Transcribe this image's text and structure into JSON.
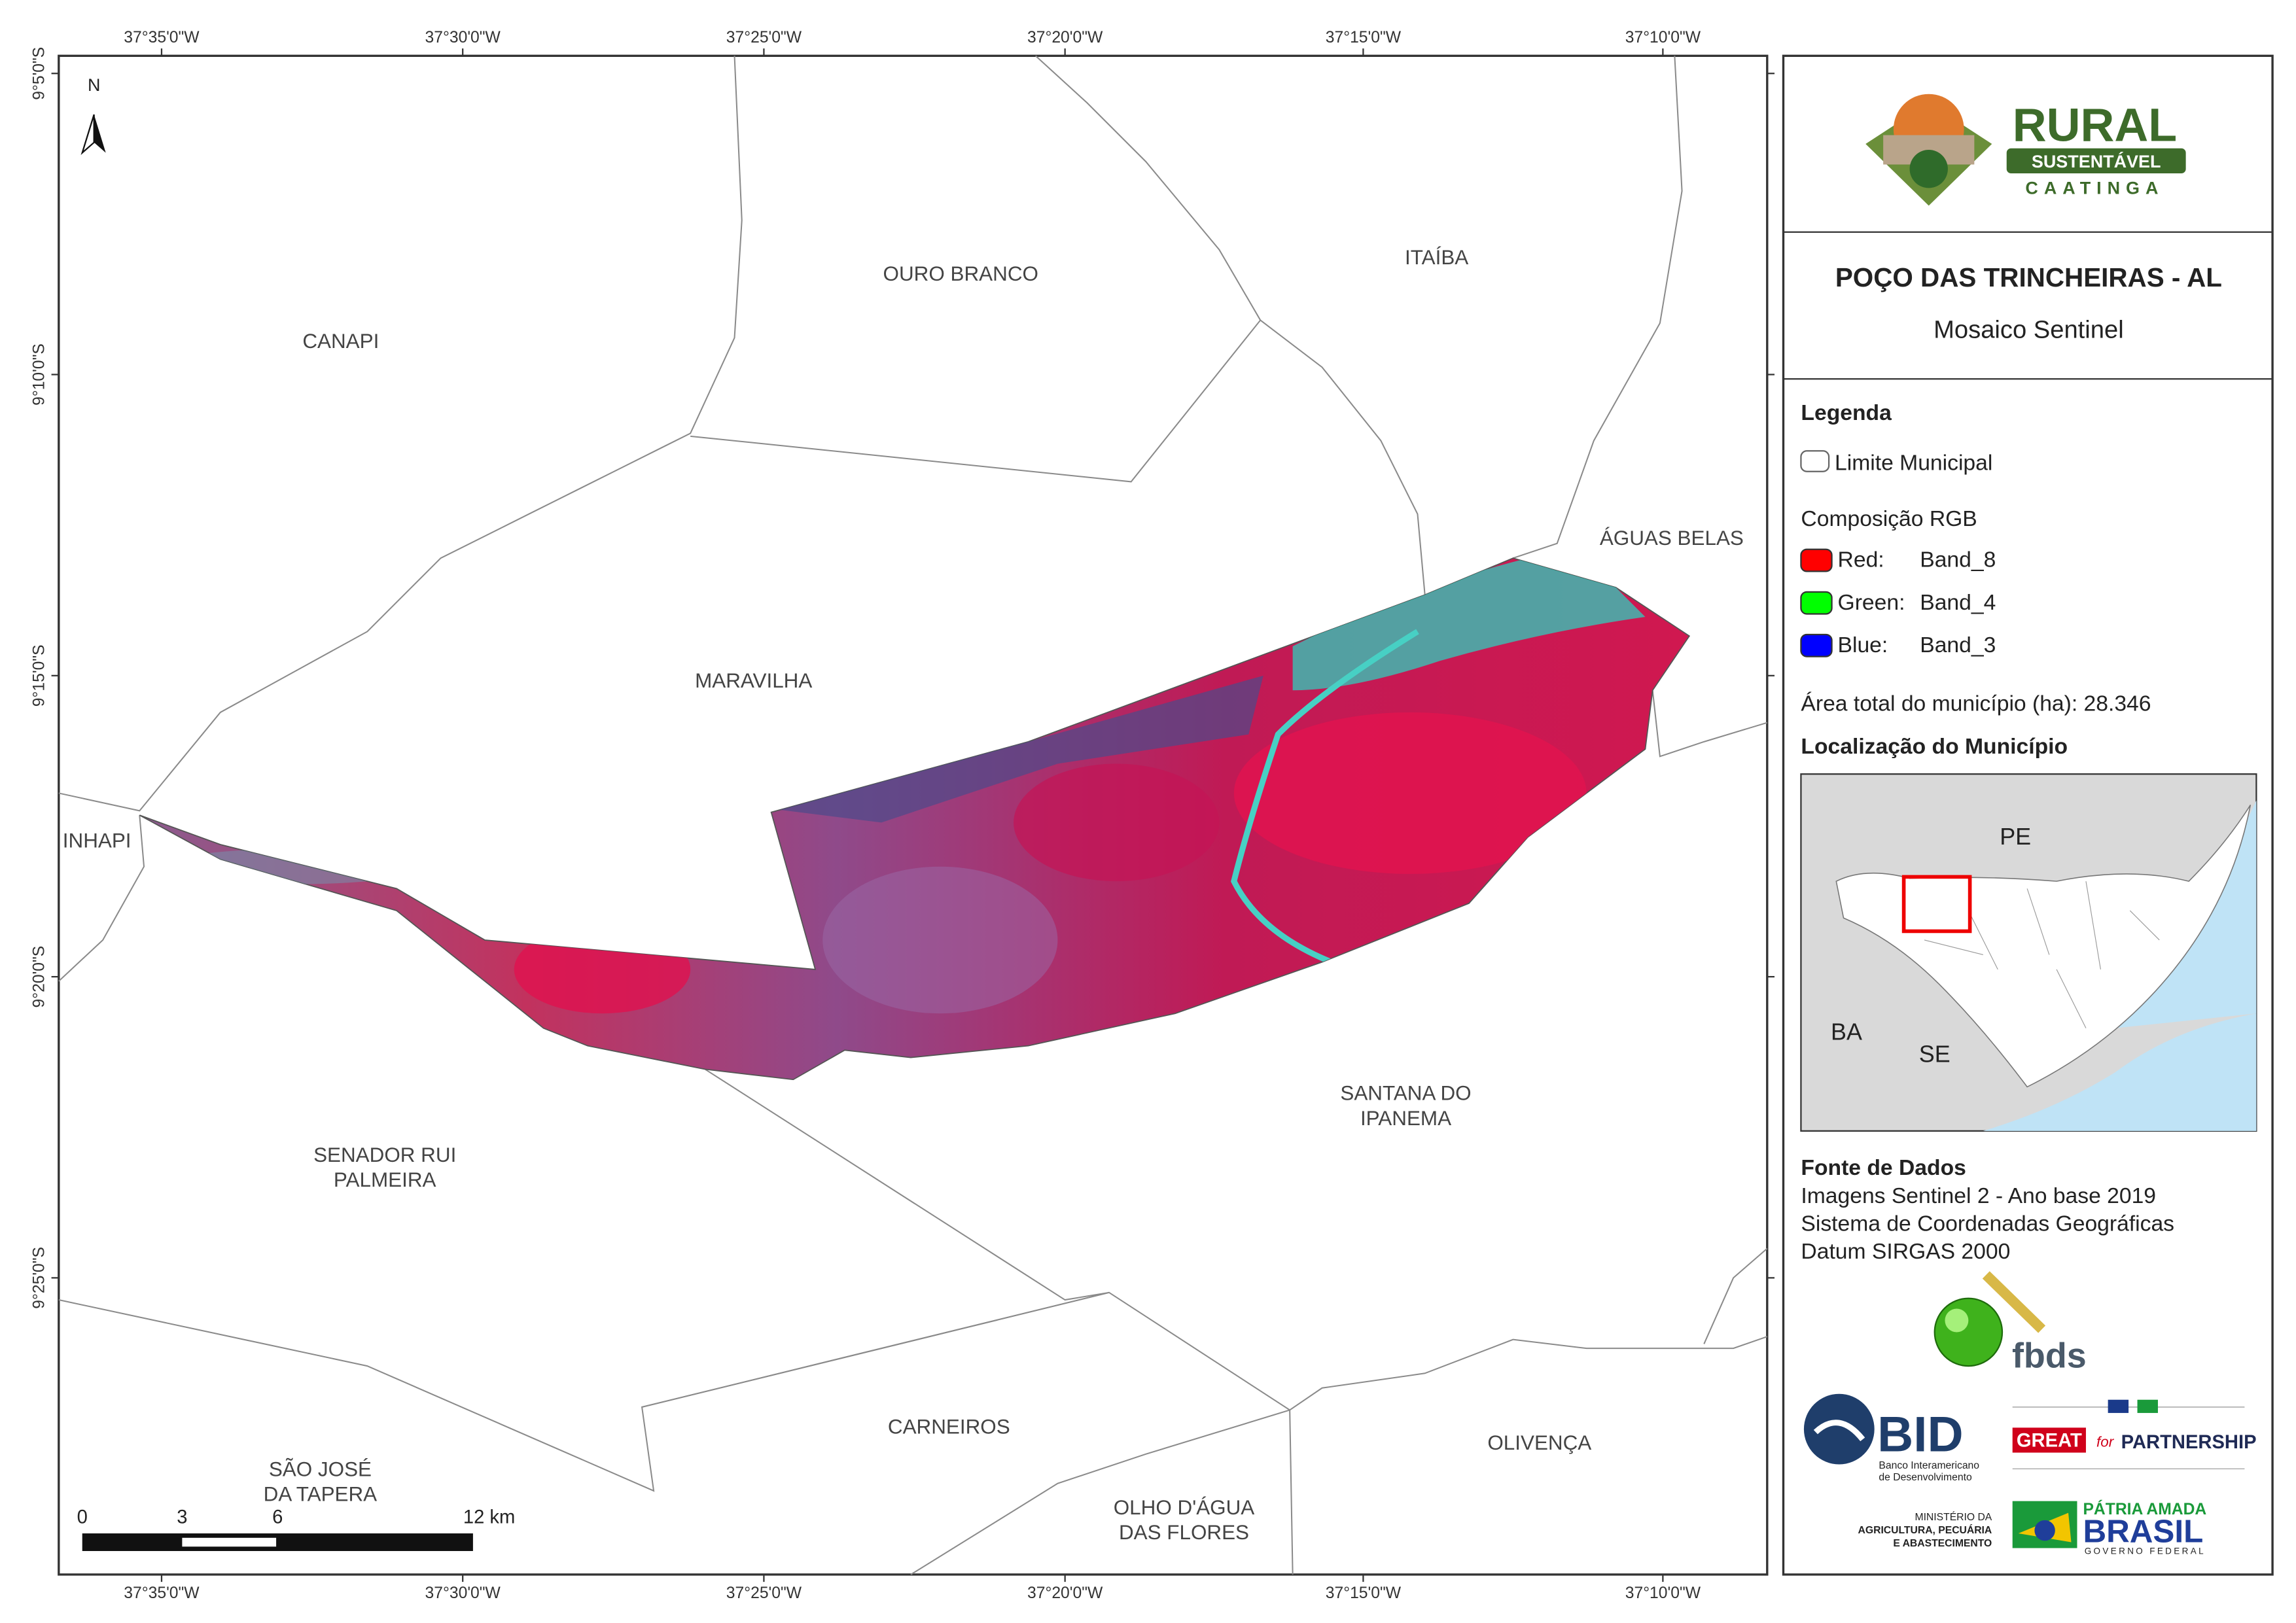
{
  "map": {
    "coordinates": {
      "top": [
        "37°35'0\"W",
        "37°30'0\"W",
        "37°25'0\"W",
        "37°20'0\"W",
        "37°15'0\"W",
        "37°10'0\"W"
      ],
      "bottom": [
        "37°35'0\"W",
        "37°30'0\"W",
        "37°25'0\"W",
        "37°20'0\"W",
        "37°15'0\"W",
        "37°10'0\"W"
      ],
      "left": [
        "9°5'0\"S",
        "9°10'0\"S",
        "9°15'0\"S",
        "9°20'0\"S",
        "9°25'0\"S"
      ]
    },
    "north": "N",
    "municipalities": [
      {
        "lines": [
          "CANAPI"
        ]
      },
      {
        "lines": [
          "OURO BRANCO"
        ]
      },
      {
        "lines": [
          "ITAÍBA"
        ]
      },
      {
        "lines": [
          "ÁGUAS BELAS"
        ]
      },
      {
        "lines": [
          "MARAVILHA"
        ]
      },
      {
        "lines": [
          "INHAPI"
        ]
      },
      {
        "lines": [
          "SANTANA DO",
          "IPANEMA"
        ]
      },
      {
        "lines": [
          "SENADOR RUI",
          "PALMEIRA"
        ]
      },
      {
        "lines": [
          "SÃO JOSÉ",
          "DA TAPERA"
        ]
      },
      {
        "lines": [
          "CARNEIROS"
        ]
      },
      {
        "lines": [
          "OLIVENÇA"
        ]
      },
      {
        "lines": [
          "OLHO D'ÁGUA",
          "DAS FLORES"
        ]
      }
    ],
    "scale_bar": {
      "labels": [
        "0",
        "3",
        "6",
        "12 km"
      ]
    }
  },
  "panel": {
    "logo": {
      "line1": "RURAL",
      "line2": "SUSTENTÁVEL",
      "line3": "CAATINGA"
    },
    "title": "POÇO DAS TRINCHEIRAS - AL",
    "subtitle": "Mosaico Sentinel",
    "legend": {
      "heading": "Legenda",
      "boundary": "Limite Municipal",
      "rgb_heading": "Composição RGB",
      "rgb": [
        {
          "channel": "Red:",
          "band": "Band_8",
          "color": "#ff0000"
        },
        {
          "channel": "Green:",
          "band": "Band_4",
          "color": "#00ff00"
        },
        {
          "channel": "Blue:",
          "band": "Band_3",
          "color": "#0000ff"
        }
      ]
    },
    "area": "Área total do município (ha): 28.346",
    "location_heading": "Localização do Município",
    "inset_labels": [
      "PE",
      "BA",
      "SE"
    ],
    "sources": {
      "heading": "Fonte de Dados",
      "lines": [
        "Imagens Sentinel 2 - Ano base 2019",
        "Sistema de Coordenadas Geográficas",
        "Datum SIRGAS 2000"
      ]
    },
    "logos": {
      "fbds": "fbds",
      "bid": "BID",
      "bid_lines": [
        "Banco Interamericano",
        "de Desenvolvimento"
      ],
      "great": "GREAT",
      "great_for": "for",
      "great_partnership": "PARTNERSHIP",
      "ministry_lines": [
        "MINISTÉRIO DA",
        "AGRICULTURA, PECUÁRIA",
        "E ABASTECIMENTO"
      ],
      "brasil_top": "PÁTRIA AMADA",
      "brasil": "BRASIL",
      "brasil_bottom": "GOVERNO FEDERAL"
    }
  }
}
